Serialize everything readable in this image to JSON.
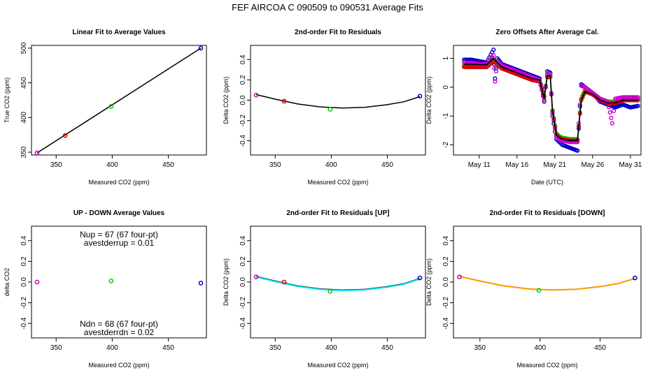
{
  "figure_title": "FEF   AIRCOA C   090509 to 090531   Average Fits",
  "colors": {
    "magenta": "#cc00cc",
    "red": "#dd0000",
    "green": "#00cc00",
    "blue": "#0000cc",
    "black": "#000000",
    "cyan": "#00e5ee",
    "orange": "#ff9900"
  },
  "chart_data": [
    {
      "id": "p1",
      "type": "scatter",
      "title": "Linear Fit to Average Values",
      "xlabel": "Measured CO2 (ppm)",
      "ylabel": "True CO2 (ppm)",
      "xlim": [
        328,
        484
      ],
      "ylim": [
        346,
        504
      ],
      "xticks": [
        350,
        400,
        450
      ],
      "yticks": [
        350,
        400,
        450,
        500
      ],
      "points": [
        {
          "x": 333,
          "y": 349,
          "color": "magenta"
        },
        {
          "x": 358,
          "y": 374,
          "color": "red"
        },
        {
          "x": 399,
          "y": 416,
          "color": "green"
        },
        {
          "x": 479,
          "y": 500,
          "color": "blue"
        }
      ],
      "lines": [
        {
          "color": "black",
          "x": [
            333,
            479
          ],
          "y": [
            349,
            500
          ]
        }
      ]
    },
    {
      "id": "p2",
      "type": "scatter",
      "title": "2nd-order Fit to Residuals",
      "xlabel": "Measured CO2 (ppm)",
      "ylabel": "Delta CO2 (ppm)",
      "xlim": [
        328,
        484
      ],
      "ylim": [
        -0.54,
        0.54
      ],
      "xticks": [
        350,
        400,
        450
      ],
      "yticks": [
        -0.4,
        -0.2,
        0.0,
        0.2,
        0.4
      ],
      "points": [
        {
          "x": 333,
          "y": 0.05,
          "color": "magenta"
        },
        {
          "x": 358,
          "y": -0.01,
          "color": "red"
        },
        {
          "x": 399,
          "y": -0.09,
          "color": "green"
        },
        {
          "x": 479,
          "y": 0.04,
          "color": "blue"
        }
      ],
      "lines": [
        {
          "color": "black",
          "x": [
            333,
            350,
            370,
            390,
            410,
            430,
            450,
            465,
            479
          ],
          "y": [
            0.055,
            0.01,
            -0.037,
            -0.066,
            -0.077,
            -0.07,
            -0.044,
            -0.015,
            0.035
          ]
        }
      ]
    },
    {
      "id": "p3",
      "type": "scatter",
      "title": "Zero Offsets After Average Cal.",
      "xlabel": "Date (UTC)",
      "ylabel": "Delta CO2 (ppm)",
      "xlim": [
        7.6,
        32.4
      ],
      "ylim": [
        -2.35,
        1.45
      ],
      "xticks": [
        11,
        16,
        21,
        26,
        31
      ],
      "xticklabels": [
        "May 11",
        "May 16",
        "May 21",
        "May 26",
        "May 31"
      ],
      "yticks": [
        -2,
        -1,
        0,
        1
      ],
      "series": [
        {
          "name": "blue",
          "color": "blue",
          "x": [
            9,
            10,
            11,
            12,
            12.9,
            13.1,
            13.4,
            14,
            15,
            16,
            17,
            18,
            19,
            19.6,
            20,
            20.4,
            20.7,
            21.2,
            21.6,
            22,
            23,
            24,
            24.5,
            25,
            26,
            27,
            28,
            29,
            30,
            31,
            32
          ],
          "y": [
            0.95,
            0.95,
            0.9,
            0.85,
            1.3,
            0.3,
            1.0,
            0.8,
            0.7,
            0.6,
            0.5,
            0.4,
            0.3,
            -0.5,
            0.55,
            0.5,
            -1.0,
            -1.8,
            -1.9,
            -2.0,
            -2.1,
            -2.2,
            0.1,
            0.0,
            -0.2,
            -0.5,
            -0.6,
            -0.7,
            -0.6,
            -0.7,
            -0.65
          ]
        },
        {
          "name": "green",
          "color": "green",
          "x": [
            9,
            10,
            11,
            12,
            12.9,
            13.4,
            14,
            15,
            16,
            17,
            18,
            19,
            19.6,
            20,
            20.4,
            20.7,
            21.2,
            21.6,
            22,
            23,
            24,
            24.5,
            25,
            26,
            27,
            28,
            29,
            30,
            31,
            32
          ],
          "y": [
            0.75,
            0.75,
            0.75,
            0.75,
            0.95,
            0.85,
            0.7,
            0.6,
            0.5,
            0.4,
            0.3,
            0.25,
            -0.3,
            0.4,
            0.4,
            -0.8,
            -1.6,
            -1.7,
            -1.75,
            -1.8,
            -1.8,
            -0.4,
            -0.1,
            -0.2,
            -0.4,
            -0.5,
            -0.5,
            -0.4,
            -0.4,
            -0.4
          ]
        },
        {
          "name": "red",
          "color": "red",
          "x": [
            9,
            10,
            11,
            12,
            12.9,
            13.4,
            14,
            15,
            16,
            17,
            18,
            19,
            19.6,
            20,
            20.4,
            20.7,
            21.2,
            21.6,
            22,
            23,
            24,
            24.5,
            25,
            26,
            27,
            28,
            29,
            30,
            31,
            32
          ],
          "y": [
            0.7,
            0.7,
            0.7,
            0.7,
            0.9,
            0.8,
            0.65,
            0.55,
            0.45,
            0.35,
            0.25,
            0.2,
            -0.35,
            0.35,
            0.35,
            -0.85,
            -1.65,
            -1.75,
            -1.8,
            -1.85,
            -1.85,
            -0.45,
            -0.15,
            -0.25,
            -0.45,
            -0.55,
            -0.55,
            -0.45,
            -0.45,
            -0.45
          ]
        },
        {
          "name": "magenta",
          "color": "magenta",
          "x": [
            9,
            10,
            11,
            12,
            12.9,
            13.1,
            13.4,
            14,
            15,
            16,
            17,
            18,
            19,
            19.6,
            20,
            20.4,
            20.7,
            21.2,
            21.6,
            22,
            23,
            24,
            24.5,
            25,
            26,
            27,
            28,
            28.6,
            29,
            30,
            31,
            32
          ],
          "y": [
            0.85,
            0.85,
            0.8,
            0.8,
            1.1,
            0.2,
            0.9,
            0.75,
            0.65,
            0.55,
            0.45,
            0.35,
            0.25,
            -0.45,
            0.45,
            0.45,
            -0.9,
            -1.7,
            -1.8,
            -1.85,
            -1.9,
            -1.9,
            0.05,
            0.0,
            -0.2,
            -0.4,
            -0.5,
            -1.25,
            -0.4,
            -0.35,
            -0.35,
            -0.35
          ]
        },
        {
          "name": "black",
          "color": "black",
          "x": [
            9,
            10,
            11,
            12,
            12.9,
            13.4,
            14,
            15,
            16,
            17,
            18,
            19,
            19.6,
            20,
            20.4,
            20.7,
            21.2,
            21.6,
            22,
            23,
            24,
            24.5,
            25,
            26,
            27,
            28,
            29,
            30,
            31,
            32
          ],
          "y": [
            0.8,
            0.8,
            0.78,
            0.78,
            1.0,
            0.85,
            0.7,
            0.6,
            0.5,
            0.4,
            0.3,
            0.25,
            -0.4,
            0.4,
            0.4,
            -0.85,
            -1.65,
            -1.75,
            -1.8,
            -1.85,
            -1.85,
            -0.45,
            -0.15,
            -0.25,
            -0.45,
            -0.55,
            -0.55,
            -0.45,
            -0.45,
            -0.45
          ]
        }
      ]
    },
    {
      "id": "p4",
      "type": "scatter",
      "title": "UP - DOWN Average Values",
      "xlabel": "Measured CO2 (ppm)",
      "ylabel": "delta CO2",
      "xlim": [
        328,
        484
      ],
      "ylim": [
        -0.54,
        0.54
      ],
      "xticks": [
        350,
        400,
        450
      ],
      "yticks": [
        -0.4,
        -0.2,
        0.0,
        0.2,
        0.4
      ],
      "points": [
        {
          "x": 333,
          "y": 0.0,
          "color": "magenta"
        },
        {
          "x": 399,
          "y": 0.01,
          "color": "green"
        },
        {
          "x": 479,
          "y": -0.01,
          "color": "blue"
        }
      ],
      "annotations_top": [
        "Nup = 67 (67 four-pt)",
        "avestderrup =  0.01"
      ],
      "annotations_bottom": [
        "Ndn = 68 (67 four-pt)",
        "avestderrdn =  0.02"
      ]
    },
    {
      "id": "p5",
      "type": "scatter",
      "title": "2nd-order Fit to Residuals [UP]",
      "xlabel": "Measured CO2 (ppm)",
      "ylabel": "Delta CO2 (ppm)",
      "xlim": [
        328,
        484
      ],
      "ylim": [
        -0.54,
        0.54
      ],
      "xticks": [
        350,
        400,
        450
      ],
      "yticks": [
        -0.4,
        -0.2,
        0.0,
        0.2,
        0.4
      ],
      "points": [
        {
          "x": 333,
          "y": 0.05,
          "color": "magenta"
        },
        {
          "x": 358,
          "y": 0.0,
          "color": "red"
        },
        {
          "x": 399,
          "y": -0.09,
          "color": "green"
        },
        {
          "x": 479,
          "y": 0.04,
          "color": "blue"
        }
      ],
      "lines": [
        {
          "color": "black",
          "x": [
            333,
            350,
            370,
            390,
            410,
            430,
            450,
            465,
            479
          ],
          "y": [
            0.055,
            0.01,
            -0.037,
            -0.066,
            -0.077,
            -0.07,
            -0.044,
            -0.015,
            0.035
          ]
        },
        {
          "color": "cyan",
          "x": [
            333,
            350,
            370,
            390,
            410,
            430,
            450,
            465,
            479
          ],
          "y": [
            0.05,
            0.005,
            -0.042,
            -0.071,
            -0.082,
            -0.075,
            -0.049,
            -0.02,
            0.03
          ]
        }
      ]
    },
    {
      "id": "p6",
      "type": "scatter",
      "title": "2nd-order Fit to Residuals [DOWN]",
      "xlabel": "Measured CO2 (ppm)",
      "ylabel": "Delta CO2 (ppm)",
      "xlim": [
        328,
        484
      ],
      "ylim": [
        -0.54,
        0.54
      ],
      "xticks": [
        350,
        400,
        450
      ],
      "yticks": [
        -0.4,
        -0.2,
        0.0,
        0.2,
        0.4
      ],
      "points": [
        {
          "x": 333,
          "y": 0.05,
          "color": "magenta"
        },
        {
          "x": 399,
          "y": -0.08,
          "color": "green"
        },
        {
          "x": 479,
          "y": 0.04,
          "color": "blue"
        }
      ],
      "lines": [
        {
          "color": "black",
          "x": [
            333,
            350,
            370,
            390,
            410,
            430,
            450,
            465,
            479
          ],
          "y": [
            0.055,
            0.01,
            -0.037,
            -0.066,
            -0.077,
            -0.07,
            -0.044,
            -0.015,
            0.035
          ]
        },
        {
          "color": "orange",
          "x": [
            333,
            350,
            370,
            390,
            410,
            430,
            450,
            465,
            479
          ],
          "y": [
            0.055,
            0.01,
            -0.037,
            -0.066,
            -0.077,
            -0.07,
            -0.044,
            -0.015,
            0.035
          ]
        }
      ]
    }
  ]
}
